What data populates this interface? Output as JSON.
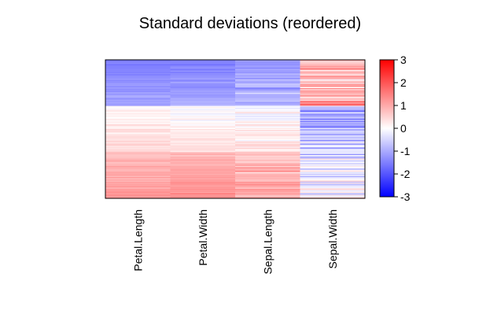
{
  "chart_data": {
    "type": "heatmap",
    "title": "Standard deviations (reordered)",
    "columns": [
      "Petal.Length",
      "Petal.Width",
      "Sepal.Length",
      "Sepal.Width"
    ],
    "rows_count": 150,
    "value_range": [
      -3,
      3
    ],
    "colorbar": {
      "low_color": "#0000ff",
      "mid_color": "#ffffff",
      "high_color": "#ff0000",
      "ticks": [
        "-3",
        "-2",
        "-1",
        "0",
        "1",
        "2",
        "3"
      ]
    },
    "row_groups": [
      {
        "rows": 50,
        "column_means": [
          -1.3,
          -1.25,
          -1.0,
          0.85
        ]
      },
      {
        "rows": 50,
        "column_means": [
          0.28,
          0.17,
          0.1,
          -0.66
        ]
      },
      {
        "rows": 50,
        "column_means": [
          1.02,
          1.09,
          0.9,
          -0.19
        ]
      }
    ]
  }
}
